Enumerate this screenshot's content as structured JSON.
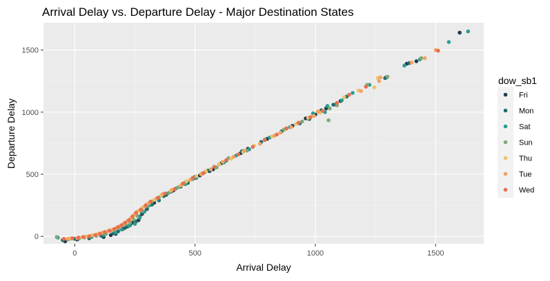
{
  "chart_data": {
    "type": "scatter",
    "title": "Arrival Delay vs. Departure Delay - Major Destination States",
    "xlabel": "Arrival Delay",
    "ylabel": "Departure Delay",
    "xlim": [
      -130,
      1700
    ],
    "ylim": [
      -60,
      1720
    ],
    "x_ticks": [
      0,
      500,
      1000,
      1500
    ],
    "y_ticks": [
      0,
      500,
      1000,
      1500
    ],
    "grid": true,
    "legend": {
      "title": "dow_sb1",
      "placement": "right"
    },
    "series": [
      {
        "name": "Fri",
        "color": "#1f3b4d",
        "points": [
          [
            1600,
            1640
          ],
          [
            1420,
            1410
          ],
          [
            1380,
            1390
          ],
          [
            1295,
            1280
          ],
          [
            1105,
            1090
          ],
          [
            1085,
            1060
          ],
          [
            1045,
            1030
          ],
          [
            1000,
            980
          ],
          [
            960,
            950
          ],
          [
            905,
            890
          ],
          [
            800,
            785
          ],
          [
            720,
            705
          ],
          [
            690,
            670
          ],
          [
            610,
            590
          ],
          [
            575,
            540
          ],
          [
            560,
            525
          ],
          [
            520,
            490
          ],
          [
            500,
            470
          ],
          [
            450,
            425
          ],
          [
            410,
            370
          ],
          [
            380,
            335
          ],
          [
            330,
            270
          ],
          [
            300,
            220
          ],
          [
            280,
            180
          ],
          [
            265,
            130
          ],
          [
            240,
            110
          ],
          [
            220,
            80
          ],
          [
            200,
            60
          ],
          [
            170,
            20
          ],
          [
            150,
            10
          ],
          [
            120,
            -5
          ],
          [
            60,
            -15
          ],
          [
            10,
            -25
          ],
          [
            -40,
            -40
          ]
        ]
      },
      {
        "name": "Mon",
        "color": "#1e6b6b",
        "points": [
          [
            1390,
            1395
          ],
          [
            1290,
            1275
          ],
          [
            1130,
            1125
          ],
          [
            1075,
            1060
          ],
          [
            1025,
            1015
          ],
          [
            975,
            945
          ],
          [
            935,
            910
          ],
          [
            860,
            845
          ],
          [
            775,
            760
          ],
          [
            695,
            685
          ],
          [
            630,
            610
          ],
          [
            600,
            580
          ],
          [
            555,
            530
          ],
          [
            500,
            480
          ],
          [
            470,
            430
          ],
          [
            440,
            400
          ],
          [
            400,
            360
          ],
          [
            370,
            325
          ],
          [
            350,
            290
          ],
          [
            320,
            255
          ],
          [
            300,
            225
          ],
          [
            280,
            190
          ],
          [
            270,
            160
          ],
          [
            255,
            120
          ],
          [
            230,
            90
          ],
          [
            210,
            70
          ],
          [
            180,
            40
          ],
          [
            160,
            25
          ],
          [
            110,
            5
          ],
          [
            60,
            -10
          ],
          [
            0,
            -20
          ],
          [
            -50,
            -30
          ]
        ]
      },
      {
        "name": "Sat",
        "color": "#2a9d8f",
        "points": [
          [
            1635,
            1650
          ],
          [
            1555,
            1565
          ],
          [
            1435,
            1425
          ],
          [
            1370,
            1375
          ],
          [
            1225,
            1220
          ],
          [
            1155,
            1155
          ],
          [
            1110,
            1095
          ],
          [
            1050,
            1050
          ],
          [
            1040,
            1000
          ],
          [
            990,
            990
          ],
          [
            895,
            880
          ],
          [
            810,
            795
          ],
          [
            725,
            700
          ],
          [
            670,
            650
          ],
          [
            620,
            595
          ],
          [
            530,
            505
          ],
          [
            505,
            470
          ],
          [
            460,
            420
          ],
          [
            420,
            385
          ],
          [
            385,
            345
          ],
          [
            345,
            300
          ],
          [
            310,
            250
          ],
          [
            290,
            200
          ],
          [
            270,
            150
          ],
          [
            250,
            100
          ],
          [
            225,
            85
          ],
          [
            195,
            55
          ],
          [
            170,
            30
          ],
          [
            120,
            10
          ],
          [
            70,
            -5
          ],
          [
            20,
            -15
          ],
          [
            -30,
            -25
          ],
          [
            -70,
            -10
          ]
        ]
      },
      {
        "name": "Sun",
        "color": "#7fa87a",
        "points": [
          [
            1440,
            1435
          ],
          [
            1300,
            1285
          ],
          [
            1215,
            1220
          ],
          [
            1090,
            1055
          ],
          [
            1060,
            1030
          ],
          [
            1055,
            935
          ],
          [
            945,
            925
          ],
          [
            870,
            860
          ],
          [
            790,
            780
          ],
          [
            715,
            690
          ],
          [
            640,
            630
          ],
          [
            590,
            555
          ],
          [
            540,
            515
          ],
          [
            490,
            460
          ],
          [
            460,
            435
          ],
          [
            430,
            395
          ],
          [
            395,
            355
          ],
          [
            350,
            315
          ],
          [
            320,
            280
          ],
          [
            300,
            245
          ],
          [
            280,
            205
          ],
          [
            260,
            165
          ],
          [
            245,
            135
          ],
          [
            230,
            110
          ],
          [
            210,
            95
          ],
          [
            185,
            70
          ],
          [
            155,
            45
          ],
          [
            130,
            20
          ],
          [
            90,
            5
          ],
          [
            40,
            -10
          ],
          [
            -20,
            -20
          ],
          [
            -75,
            -5
          ]
        ]
      },
      {
        "name": "Thu",
        "color": "#e9c46a",
        "points": [
          [
            1260,
            1275
          ],
          [
            1245,
            1200
          ],
          [
            1180,
            1175
          ],
          [
            1120,
            1120
          ],
          [
            1020,
            995
          ],
          [
            970,
            955
          ],
          [
            920,
            905
          ],
          [
            880,
            865
          ],
          [
            820,
            805
          ],
          [
            745,
            730
          ],
          [
            700,
            680
          ],
          [
            650,
            625
          ],
          [
            600,
            580
          ],
          [
            545,
            525
          ],
          [
            505,
            485
          ],
          [
            465,
            445
          ],
          [
            440,
            410
          ],
          [
            400,
            370
          ],
          [
            360,
            330
          ],
          [
            330,
            295
          ],
          [
            300,
            260
          ],
          [
            280,
            230
          ],
          [
            260,
            200
          ],
          [
            245,
            170
          ],
          [
            230,
            140
          ],
          [
            215,
            115
          ],
          [
            200,
            95
          ],
          [
            185,
            80
          ],
          [
            170,
            65
          ],
          [
            150,
            50
          ],
          [
            125,
            35
          ],
          [
            100,
            25
          ],
          [
            75,
            10
          ],
          [
            50,
            0
          ],
          [
            20,
            -10
          ],
          [
            -20,
            -15
          ]
        ]
      },
      {
        "name": "Tue",
        "color": "#f4a261",
        "points": [
          [
            1500,
            1500
          ],
          [
            1455,
            1435
          ],
          [
            1400,
            1400
          ],
          [
            1270,
            1280
          ],
          [
            1265,
            1250
          ],
          [
            1190,
            1170
          ],
          [
            1010,
            1005
          ],
          [
            995,
            970
          ],
          [
            900,
            880
          ],
          [
            855,
            835
          ],
          [
            830,
            810
          ],
          [
            770,
            745
          ],
          [
            705,
            690
          ],
          [
            660,
            640
          ],
          [
            615,
            600
          ],
          [
            565,
            540
          ],
          [
            525,
            500
          ],
          [
            480,
            455
          ],
          [
            445,
            415
          ],
          [
            405,
            375
          ],
          [
            365,
            340
          ],
          [
            340,
            305
          ],
          [
            310,
            270
          ],
          [
            290,
            240
          ],
          [
            270,
            210
          ],
          [
            250,
            180
          ],
          [
            235,
            150
          ],
          [
            220,
            125
          ],
          [
            205,
            105
          ],
          [
            190,
            85
          ],
          [
            175,
            70
          ],
          [
            160,
            55
          ],
          [
            140,
            45
          ],
          [
            115,
            30
          ],
          [
            90,
            15
          ],
          [
            65,
            5
          ],
          [
            40,
            -5
          ],
          [
            10,
            -15
          ],
          [
            -30,
            -20
          ]
        ]
      },
      {
        "name": "Wed",
        "color": "#e76f51",
        "points": [
          [
            1510,
            1495
          ],
          [
            1210,
            1205
          ],
          [
            1140,
            1140
          ],
          [
            1090,
            1075
          ],
          [
            1030,
            1010
          ],
          [
            980,
            960
          ],
          [
            930,
            915
          ],
          [
            880,
            870
          ],
          [
            840,
            820
          ],
          [
            790,
            775
          ],
          [
            740,
            720
          ],
          [
            680,
            660
          ],
          [
            630,
            615
          ],
          [
            580,
            560
          ],
          [
            535,
            510
          ],
          [
            490,
            470
          ],
          [
            450,
            425
          ],
          [
            415,
            380
          ],
          [
            375,
            345
          ],
          [
            345,
            310
          ],
          [
            315,
            280
          ],
          [
            295,
            250
          ],
          [
            275,
            215
          ],
          [
            255,
            190
          ],
          [
            240,
            160
          ],
          [
            225,
            130
          ],
          [
            210,
            110
          ],
          [
            195,
            90
          ],
          [
            180,
            75
          ],
          [
            165,
            60
          ],
          [
            145,
            45
          ],
          [
            125,
            35
          ],
          [
            105,
            20
          ],
          [
            85,
            10
          ],
          [
            60,
            0
          ],
          [
            35,
            -5
          ],
          [
            15,
            -10
          ],
          [
            -10,
            -15
          ],
          [
            -45,
            -20
          ]
        ]
      }
    ]
  }
}
